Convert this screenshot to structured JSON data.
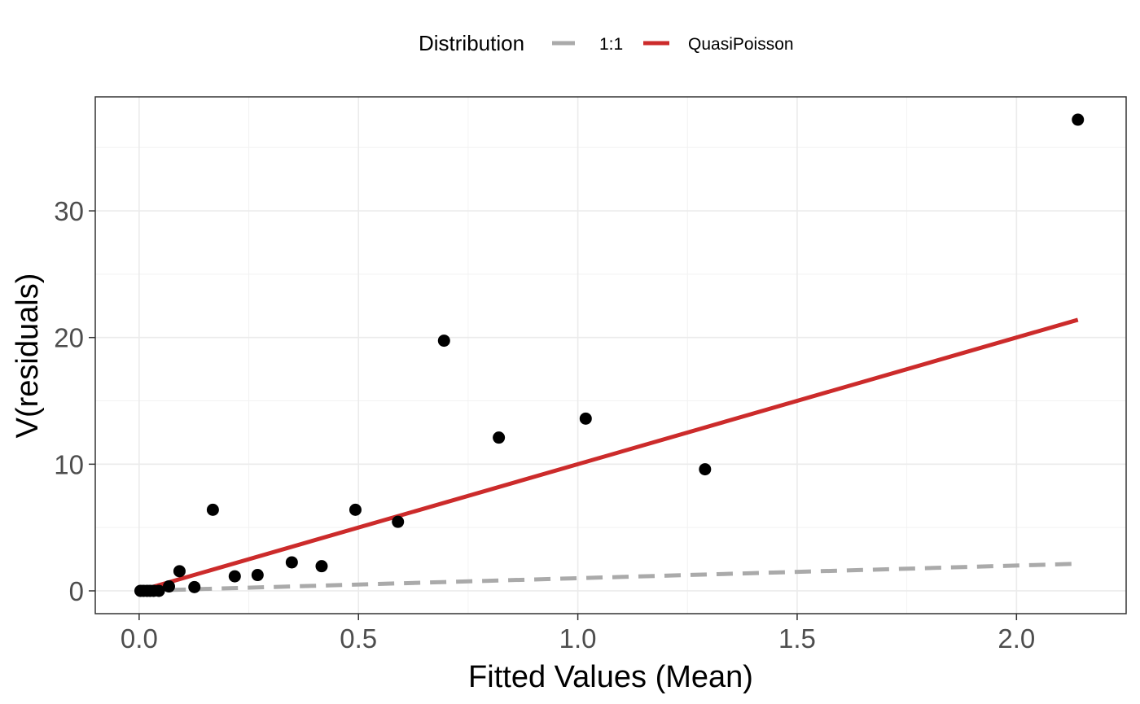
{
  "chart_data": {
    "type": "scatter",
    "title": "",
    "xlabel": "Fitted Values (Mean)",
    "ylabel": "V(residuals)",
    "xlim": [
      -0.1,
      2.25
    ],
    "ylim": [
      -1.8,
      39.0
    ],
    "x_ticks": [
      0.0,
      0.5,
      1.0,
      1.5,
      2.0
    ],
    "x_tick_labels": [
      "0.0",
      "0.5",
      "1.0",
      "1.5",
      "2.0"
    ],
    "y_ticks": [
      0,
      10,
      20,
      30
    ],
    "y_tick_labels": [
      "0",
      "10",
      "20",
      "30"
    ],
    "x_minor_ticks": [
      0.25,
      0.75,
      1.25,
      1.75
    ],
    "y_minor_ticks": [
      5,
      15,
      25,
      35
    ],
    "grid": true,
    "legend": {
      "position": "top",
      "title": "Distribution",
      "entries": [
        {
          "label": "1:1",
          "color": "#aaaaaa",
          "style": "dashed"
        },
        {
          "label": "QuasiPoisson",
          "color": "#cc2b2b",
          "style": "solid"
        }
      ]
    },
    "points": {
      "color": "#000000",
      "x": [
        0.003,
        0.01,
        0.018,
        0.025,
        0.033,
        0.045,
        0.068,
        0.092,
        0.126,
        0.168,
        0.218,
        0.27,
        0.348,
        0.416,
        0.493,
        0.59,
        0.695,
        0.82,
        1.018,
        1.29,
        2.14
      ],
      "y": [
        0.0,
        0.0,
        0.0,
        0.0,
        0.0,
        0.0,
        0.35,
        1.55,
        0.3,
        6.4,
        1.15,
        1.25,
        2.25,
        1.95,
        6.4,
        5.45,
        19.75,
        12.1,
        13.6,
        9.6,
        37.2
      ]
    },
    "series": [
      {
        "name": "1:1",
        "color": "#aaaaaa",
        "style": "dashed",
        "x": [
          0.01,
          2.14
        ],
        "y": [
          0.01,
          2.14
        ]
      },
      {
        "name": "QuasiPoisson",
        "color": "#cc2b2b",
        "style": "solid",
        "x": [
          0.01,
          2.14
        ],
        "y": [
          0.1,
          21.4
        ]
      }
    ]
  }
}
